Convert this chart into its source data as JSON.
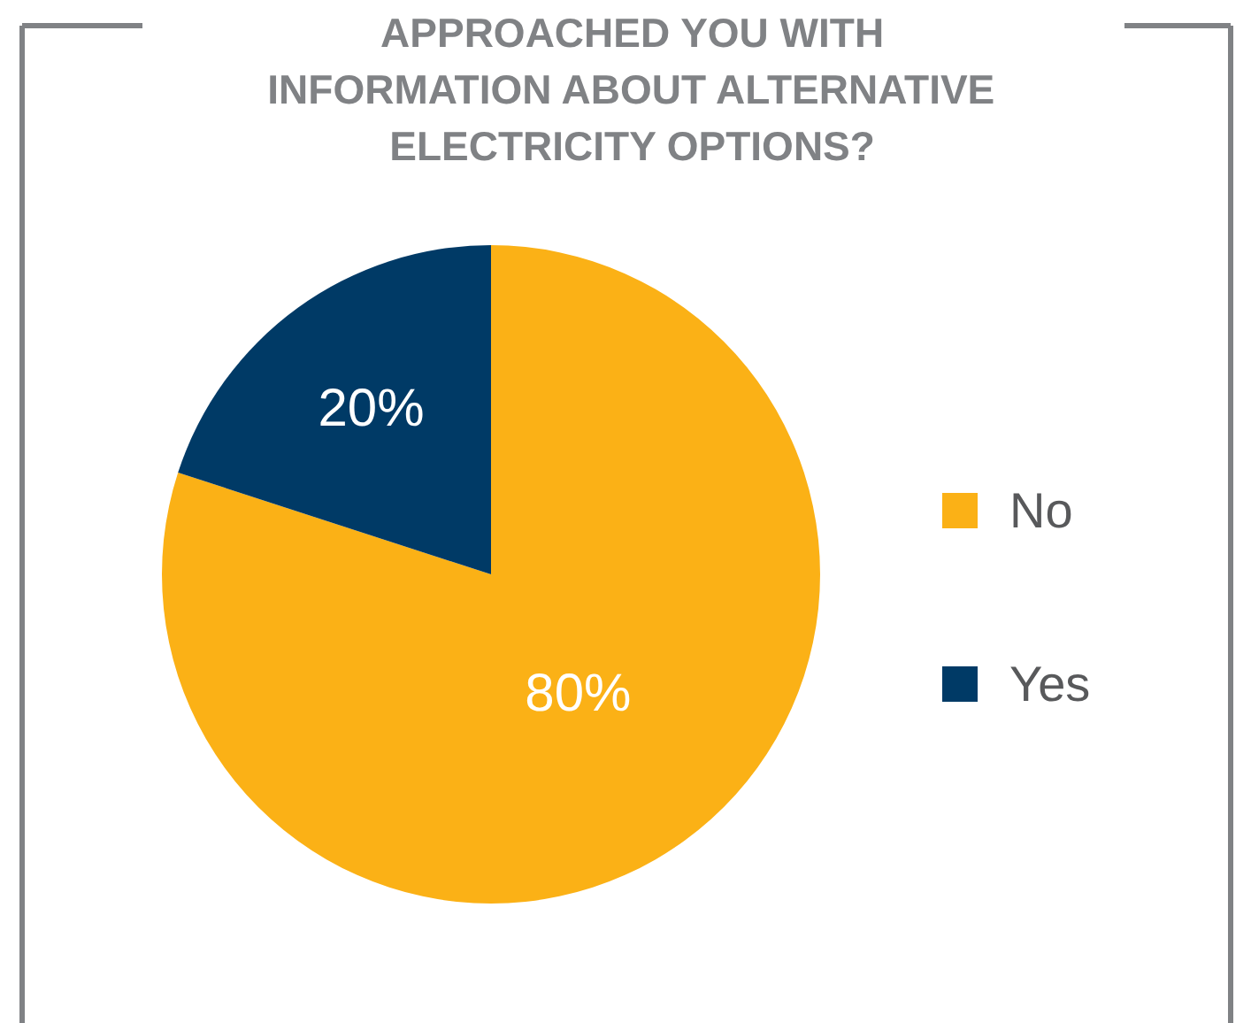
{
  "chart_data": {
    "type": "pie",
    "title": "APPROACHED YOU WITH\nINFORMATION ABOUT ALTERNATIVE\nELECTRICITY OPTIONS?",
    "categories": [
      "No",
      "Yes"
    ],
    "values": [
      80,
      20
    ],
    "colors": [
      "#fbb116",
      "#003a66"
    ],
    "value_labels": [
      "80%",
      "20%"
    ],
    "legend": "right"
  }
}
